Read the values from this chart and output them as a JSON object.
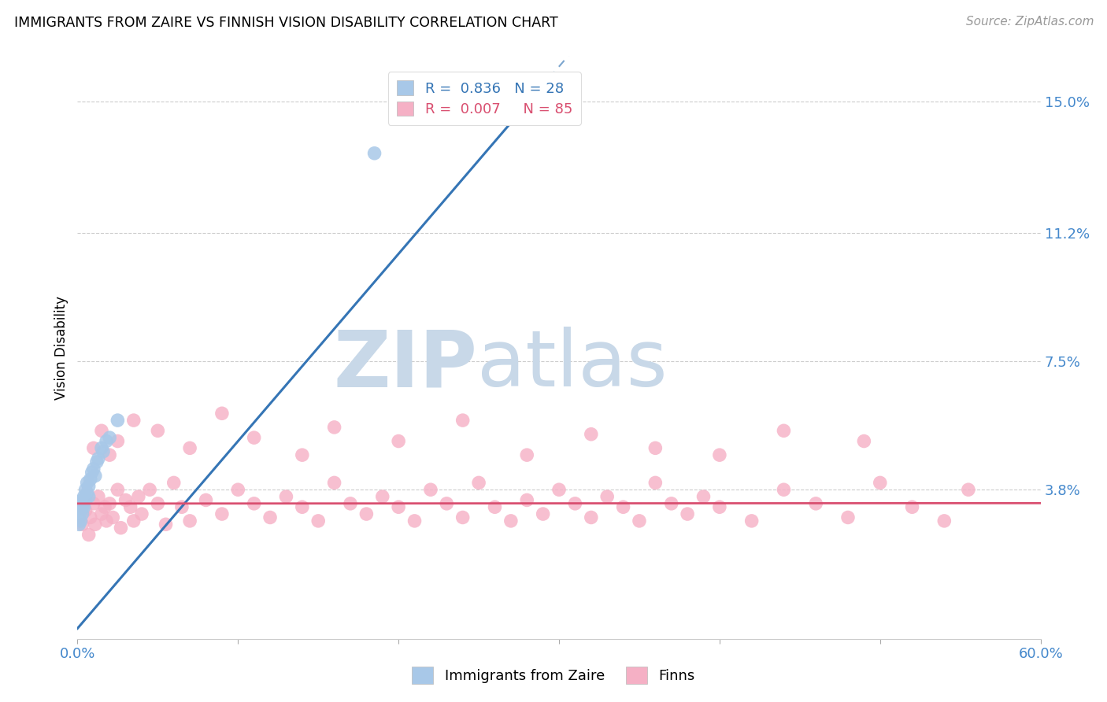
{
  "title": "IMMIGRANTS FROM ZAIRE VS FINNISH VISION DISABILITY CORRELATION CHART",
  "source": "Source: ZipAtlas.com",
  "ylabel_label": "Vision Disability",
  "legend_label1": "Immigrants from Zaire",
  "legend_label2": "Finns",
  "R_blue": "0.836",
  "N_blue": "28",
  "R_pink": "0.007",
  "N_pink": "85",
  "xlim": [
    0.0,
    0.6
  ],
  "ylim": [
    -0.005,
    0.163
  ],
  "ytick_positions": [
    0.038,
    0.075,
    0.112,
    0.15
  ],
  "ytick_labels": [
    "3.8%",
    "7.5%",
    "11.2%",
    "15.0%"
  ],
  "color_blue": "#a8c8e8",
  "color_blue_line": "#3575b5",
  "color_pink": "#f5b0c5",
  "color_pink_line": "#d94f70",
  "watermark_zip_color": "#c8d8e8",
  "watermark_atlas_color": "#c8d8e8",
  "bg_color": "#ffffff",
  "grid_color": "#cccccc",
  "tick_color": "#4488cc",
  "blue_x": [
    0.001,
    0.001,
    0.002,
    0.002,
    0.002,
    0.003,
    0.003,
    0.003,
    0.004,
    0.004,
    0.005,
    0.005,
    0.006,
    0.006,
    0.007,
    0.007,
    0.008,
    0.009,
    0.01,
    0.011,
    0.012,
    0.013,
    0.015,
    0.016,
    0.018,
    0.02,
    0.025,
    0.185
  ],
  "blue_y": [
    0.028,
    0.03,
    0.032,
    0.029,
    0.034,
    0.033,
    0.031,
    0.035,
    0.036,
    0.033,
    0.038,
    0.035,
    0.037,
    0.04,
    0.039,
    0.036,
    0.041,
    0.043,
    0.044,
    0.042,
    0.046,
    0.047,
    0.05,
    0.049,
    0.052,
    0.053,
    0.058,
    0.135
  ],
  "pink_x": [
    0.003,
    0.005,
    0.007,
    0.008,
    0.01,
    0.011,
    0.013,
    0.015,
    0.017,
    0.018,
    0.02,
    0.022,
    0.025,
    0.027,
    0.03,
    0.033,
    0.035,
    0.038,
    0.04,
    0.045,
    0.05,
    0.055,
    0.06,
    0.065,
    0.07,
    0.08,
    0.09,
    0.1,
    0.11,
    0.12,
    0.13,
    0.14,
    0.15,
    0.16,
    0.17,
    0.18,
    0.19,
    0.2,
    0.21,
    0.22,
    0.23,
    0.24,
    0.25,
    0.26,
    0.27,
    0.28,
    0.29,
    0.3,
    0.31,
    0.32,
    0.33,
    0.34,
    0.35,
    0.36,
    0.37,
    0.38,
    0.39,
    0.4,
    0.42,
    0.44,
    0.46,
    0.48,
    0.5,
    0.52,
    0.54,
    0.555,
    0.01,
    0.015,
    0.02,
    0.025,
    0.035,
    0.05,
    0.07,
    0.09,
    0.11,
    0.14,
    0.16,
    0.2,
    0.24,
    0.28,
    0.32,
    0.36,
    0.4,
    0.44,
    0.49
  ],
  "pink_y": [
    0.028,
    0.032,
    0.025,
    0.03,
    0.034,
    0.028,
    0.036,
    0.031,
    0.033,
    0.029,
    0.034,
    0.03,
    0.038,
    0.027,
    0.035,
    0.033,
    0.029,
    0.036,
    0.031,
    0.038,
    0.034,
    0.028,
    0.04,
    0.033,
    0.029,
    0.035,
    0.031,
    0.038,
    0.034,
    0.03,
    0.036,
    0.033,
    0.029,
    0.04,
    0.034,
    0.031,
    0.036,
    0.033,
    0.029,
    0.038,
    0.034,
    0.03,
    0.04,
    0.033,
    0.029,
    0.035,
    0.031,
    0.038,
    0.034,
    0.03,
    0.036,
    0.033,
    0.029,
    0.04,
    0.034,
    0.031,
    0.036,
    0.033,
    0.029,
    0.038,
    0.034,
    0.03,
    0.04,
    0.033,
    0.029,
    0.038,
    0.05,
    0.055,
    0.048,
    0.052,
    0.058,
    0.055,
    0.05,
    0.06,
    0.053,
    0.048,
    0.056,
    0.052,
    0.058,
    0.048,
    0.054,
    0.05,
    0.048,
    0.055,
    0.052
  ],
  "blue_line_x0": 0.0,
  "blue_line_y0": -0.002,
  "blue_line_slope": 0.54,
  "blue_line_solid_end": 0.27,
  "blue_line_dashed_end": 0.38,
  "pink_line_intercept": 0.034,
  "pink_line_slope": 0.0002
}
